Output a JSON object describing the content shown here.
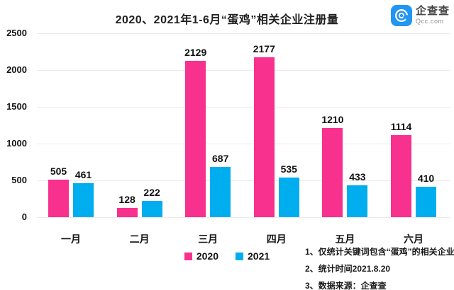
{
  "header": {
    "title": "2020、2021年1-6月“蛋鸡”相关企业注册量",
    "logo": {
      "name": "企查查",
      "domain": "Qcc.com",
      "icon_color": "#2196f3"
    }
  },
  "chart_data": {
    "type": "bar",
    "title": "2020、2021年1-6月“蛋鸡”相关企业注册量",
    "categories": [
      "一月",
      "二月",
      "三月",
      "四月",
      "五月",
      "六月"
    ],
    "series": [
      {
        "name": "2020",
        "color": "#f8308e",
        "values": [
          505,
          128,
          2129,
          2177,
          1210,
          1114
        ]
      },
      {
        "name": "2021",
        "color": "#00aeef",
        "values": [
          461,
          222,
          687,
          535,
          433,
          410
        ]
      }
    ],
    "xlabel": "",
    "ylabel": "",
    "ylim": [
      0,
      2500
    ],
    "yticks": [
      0,
      500,
      1000,
      1500,
      2000,
      2500
    ],
    "grid": "horizontal",
    "legend_position": "bottom-center"
  },
  "footnotes": [
    "1、仅统计关键词包含“蛋鸡”的相关企业",
    "2、统计时间2021.8.20",
    "3、数据来源：企查查"
  ]
}
